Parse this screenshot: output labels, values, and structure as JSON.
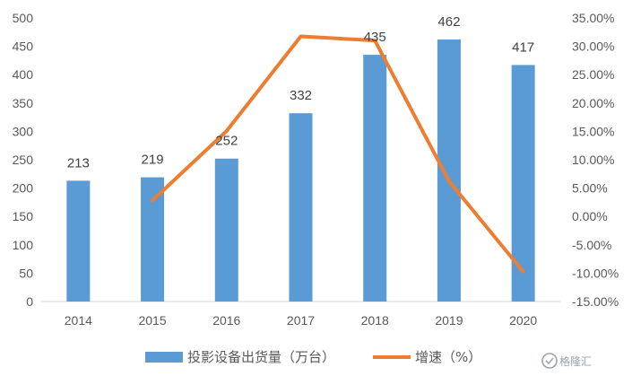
{
  "chart_data": {
    "type": "bar",
    "categories": [
      "2014",
      "2015",
      "2016",
      "2017",
      "2018",
      "2019",
      "2020"
    ],
    "series": [
      {
        "name": "投影设备出货量（万台）",
        "type": "bar",
        "axis": "left",
        "color": "#5B9BD5",
        "values": [
          213,
          219,
          252,
          332,
          435,
          462,
          417
        ],
        "data_labels": [
          "213",
          "219",
          "252",
          "332",
          "435",
          "462",
          "417"
        ]
      },
      {
        "name": "增速（%）",
        "type": "line",
        "axis": "right",
        "color": "#ED7D31",
        "values": [
          null,
          0.0282,
          0.1507,
          0.3175,
          0.3102,
          0.0621,
          -0.0974
        ]
      }
    ],
    "left_axis": {
      "min": 0,
      "max": 500,
      "step": 50,
      "tick_labels": [
        "0",
        "50",
        "100",
        "150",
        "200",
        "250",
        "300",
        "350",
        "400",
        "450",
        "500"
      ]
    },
    "right_axis": {
      "min": -0.15,
      "max": 0.35,
      "step": 0.05,
      "tick_labels": [
        "-15.00%",
        "-10.00%",
        "-5.00%",
        "0.00%",
        "5.00%",
        "10.00%",
        "15.00%",
        "20.00%",
        "25.00%",
        "30.00%",
        "35.00%"
      ]
    },
    "grid": false,
    "legend": "bottom"
  },
  "watermark": {
    "text": "格隆汇",
    "icon": "watermark-logo-icon"
  }
}
